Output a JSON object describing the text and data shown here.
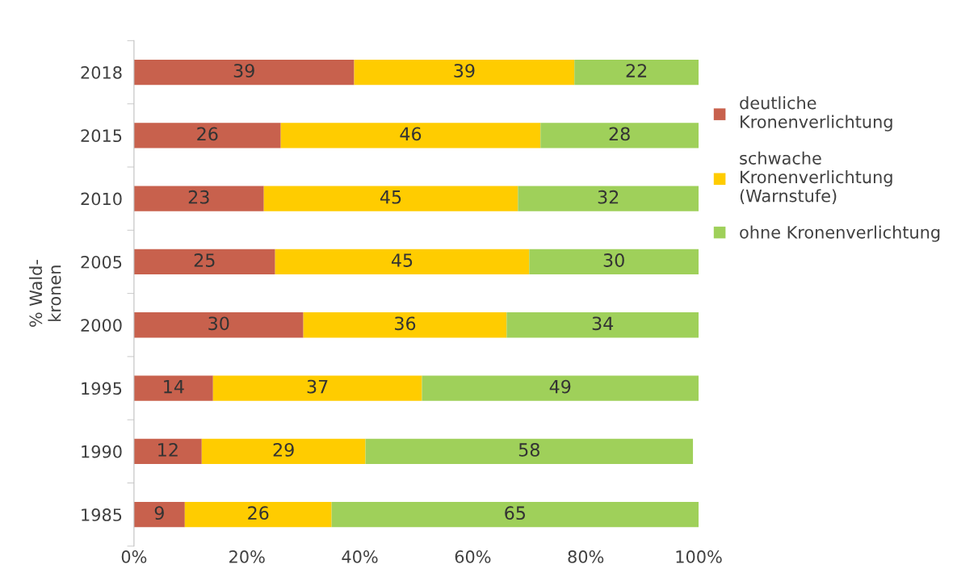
{
  "chart_data": {
    "type": "bar",
    "orientation": "horizontal",
    "stacked": true,
    "data_labels": true,
    "ylabel": "% Wald-\nkronen",
    "categories": [
      "2018",
      "2015",
      "2010",
      "2005",
      "2000",
      "1995",
      "1990",
      "1985"
    ],
    "series": [
      {
        "name": "deutliche\nKronenverlichtung",
        "color": "#c8614d",
        "values": [
          39,
          26,
          23,
          25,
          30,
          14,
          12,
          9
        ]
      },
      {
        "name": "schwache\nKronenverlichtung\n(Warnstufe)",
        "color": "#ffcc00",
        "values": [
          39,
          46,
          45,
          45,
          36,
          37,
          29,
          26
        ]
      },
      {
        "name": "ohne Kronenverlichtung",
        "color": "#9fd05a",
        "values": [
          22,
          28,
          32,
          30,
          34,
          49,
          58,
          65
        ]
      }
    ],
    "xlim": [
      0,
      100
    ],
    "xticks": [
      {
        "value": 0,
        "label": "0%"
      },
      {
        "value": 20,
        "label": "20%"
      },
      {
        "value": 40,
        "label": "40%"
      },
      {
        "value": 60,
        "label": "60%"
      },
      {
        "value": 80,
        "label": "80%"
      },
      {
        "value": 100,
        "label": "100%"
      }
    ],
    "grid": false,
    "legend": "right"
  }
}
